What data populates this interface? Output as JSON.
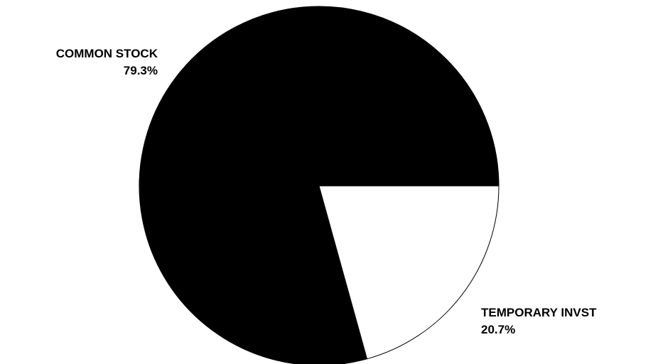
{
  "chart_data": {
    "type": "pie",
    "slices": [
      {
        "name": "COMMON STOCK",
        "value": 79.3,
        "label": "79.3%",
        "color": "#000000"
      },
      {
        "name": "TEMPORARY INVST",
        "value": 20.7,
        "label": "20.7%",
        "color": "#ffffff"
      }
    ],
    "start_angle": "3 o'clock, clockwise",
    "legend": "none"
  }
}
